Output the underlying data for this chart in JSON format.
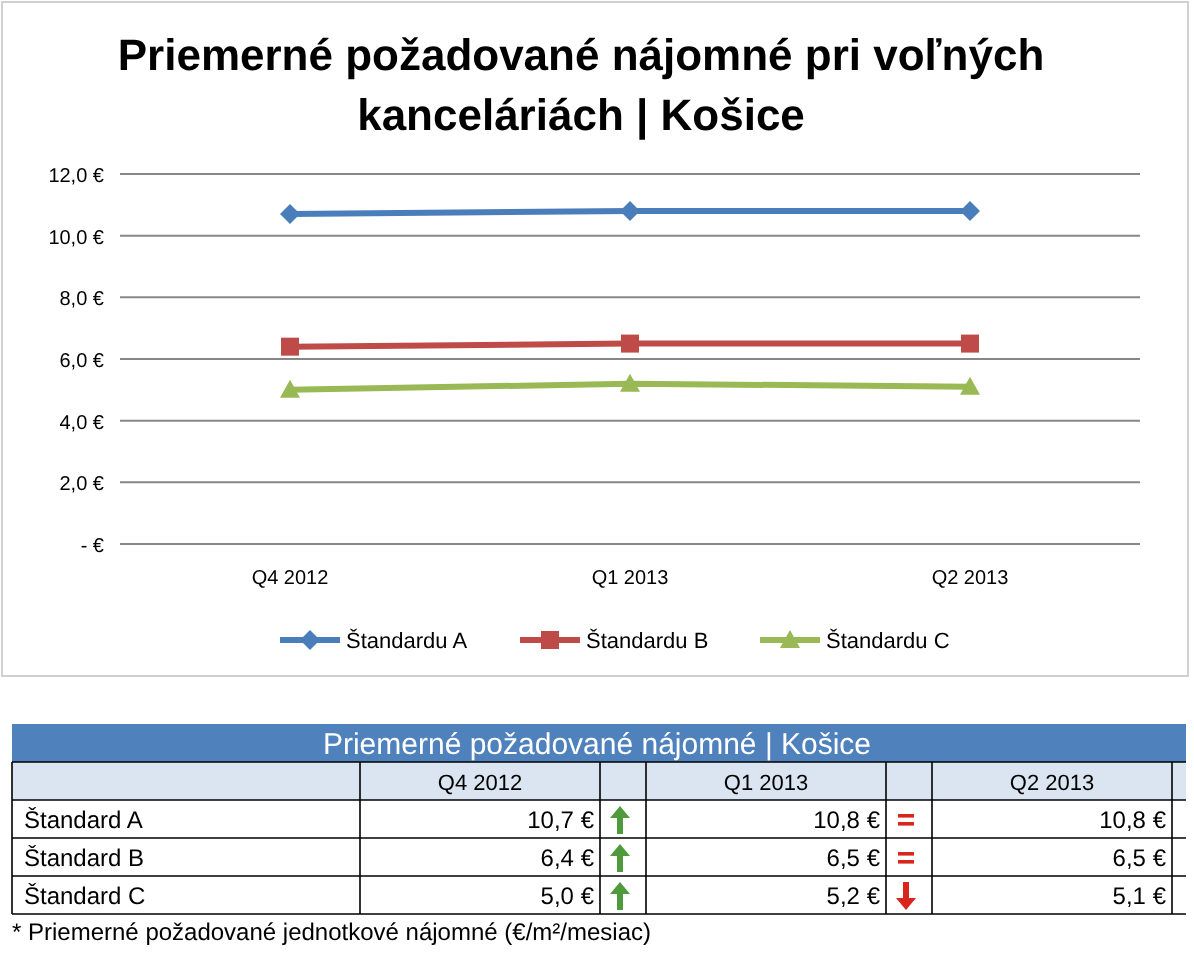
{
  "chart_data": {
    "type": "line",
    "title": "Priemerné požadované nájomné pri voľných kanceláriách | Košice",
    "categories": [
      "Q4 2012",
      "Q1 2013",
      "Q2 2013"
    ],
    "series": [
      {
        "name": "Štandardu A",
        "color": "#4a7ebb",
        "marker": "diamond",
        "values": [
          10.7,
          10.8,
          10.8
        ]
      },
      {
        "name": "Štandardu B",
        "color": "#be4b48",
        "marker": "square",
        "values": [
          6.4,
          6.5,
          6.5
        ]
      },
      {
        "name": "Štandardu C",
        "color": "#98b954",
        "marker": "triangle",
        "values": [
          5.0,
          5.2,
          5.1
        ]
      }
    ],
    "ylim": [
      0,
      12
    ],
    "yticks": [
      {
        "value": 0,
        "label": "-   €"
      },
      {
        "value": 2,
        "label": "2,0 €"
      },
      {
        "value": 4,
        "label": "4,0 €"
      },
      {
        "value": 6,
        "label": "6,0 €"
      },
      {
        "value": 8,
        "label": "8,0 €"
      },
      {
        "value": 10,
        "label": "10,0 €"
      },
      {
        "value": 12,
        "label": "12,0 €"
      }
    ],
    "grid": "y",
    "legend": "bottom",
    "annotations": [
      "Priemerné požadované nájomné | Košice",
      "Štandard A",
      "10,7 €",
      "10,8 €",
      "10,8 €",
      "Štandard B",
      "6,4 €",
      "6,5 €",
      "6,5 €",
      "Štandard C",
      "5,0 €",
      "5,2 €",
      "5,1 €",
      "* Priemerné požadované jednotkové nájomné (€/m²/mesiac)"
    ]
  }
}
